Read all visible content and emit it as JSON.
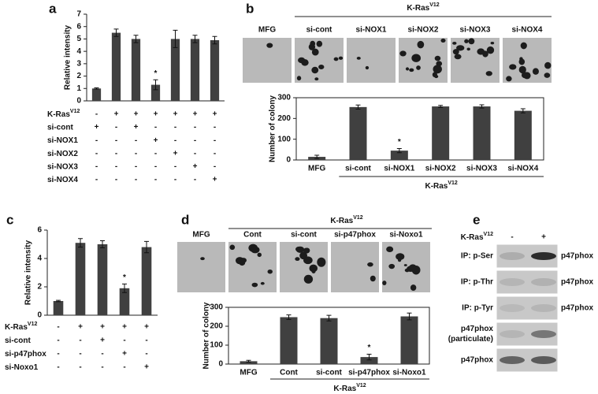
{
  "chart_data": [
    {
      "panel": "a",
      "type": "bar",
      "y_label": "Relative intensity",
      "color": "#404040",
      "values": [
        1,
        5.5,
        5.0,
        1.3,
        5.0,
        5.0,
        4.9
      ],
      "errors": [
        0.05,
        0.3,
        0.3,
        0.4,
        0.7,
        0.3,
        0.3
      ],
      "markers": [
        null,
        null,
        null,
        "*",
        null,
        null,
        null
      ],
      "ylim": [
        0,
        7
      ],
      "yticks": [
        0,
        1,
        2,
        3,
        4,
        5,
        6,
        7
      ],
      "conditions": [
        {
          "label": "K-Ras",
          "superscript": "V12",
          "marks": [
            "-",
            "+",
            "+",
            "+",
            "+",
            "+",
            "+"
          ]
        },
        {
          "label": "si-cont",
          "marks": [
            "+",
            "-",
            "+",
            "-",
            "-",
            "-",
            "-"
          ]
        },
        {
          "label": "si-NOX1",
          "marks": [
            "-",
            "-",
            "-",
            "+",
            "-",
            "-",
            "-"
          ]
        },
        {
          "label": "si-NOX2",
          "marks": [
            "-",
            "-",
            "-",
            "-",
            "+",
            "-",
            "-"
          ]
        },
        {
          "label": "si-NOX3",
          "marks": [
            "-",
            "-",
            "-",
            "-",
            "-",
            "+",
            "-"
          ]
        },
        {
          "label": "si-NOX4",
          "marks": [
            "-",
            "-",
            "-",
            "-",
            "-",
            "-",
            "+"
          ]
        }
      ]
    },
    {
      "panel": "b",
      "type": "bar",
      "y_label": "Number of colony",
      "color": "#404040",
      "header": {
        "label": "K-Ras",
        "superscript": "V12"
      },
      "image_labels": [
        "MFG",
        "si-cont",
        "si-NOX1",
        "si-NOX2",
        "si-NOX3",
        "si-NOX4"
      ],
      "categories": [
        "MFG",
        "si-cont",
        "si-NOX1",
        "si-NOX2",
        "si-NOX3",
        "si-NOX4"
      ],
      "values": [
        15,
        255,
        45,
        258,
        258,
        237
      ],
      "errors": [
        8,
        10,
        10,
        5,
        8,
        10
      ],
      "markers": [
        null,
        null,
        "*",
        null,
        null,
        null
      ],
      "ylim": [
        0,
        300
      ],
      "yticks": [
        0,
        100,
        200,
        300
      ],
      "group_label": {
        "label": "K-Ras",
        "superscript": "V12"
      }
    },
    {
      "panel": "c",
      "type": "bar",
      "y_label": "Relative intensity",
      "color": "#404040",
      "values": [
        1,
        5.1,
        5.0,
        1.9,
        4.8
      ],
      "errors": [
        0.05,
        0.3,
        0.25,
        0.3,
        0.4
      ],
      "markers": [
        null,
        null,
        null,
        "*",
        null
      ],
      "ylim": [
        0,
        6
      ],
      "yticks": [
        0,
        2,
        4,
        6
      ],
      "conditions": [
        {
          "label": "K-Ras",
          "superscript": "V12",
          "marks": [
            "-",
            "+",
            "+",
            "+",
            "+"
          ]
        },
        {
          "label": "si-cont",
          "marks": [
            "-",
            "-",
            "+",
            "-",
            "-"
          ]
        },
        {
          "label": "si-p47phox",
          "marks": [
            "-",
            "-",
            "-",
            "+",
            "-"
          ]
        },
        {
          "label": "si-Noxo1",
          "marks": [
            "-",
            "-",
            "-",
            "-",
            "+"
          ]
        }
      ]
    },
    {
      "panel": "d",
      "type": "bar",
      "y_label": "Number of colony",
      "color": "#404040",
      "header": {
        "label": "K-Ras",
        "superscript": "V12"
      },
      "image_labels": [
        "MFG",
        "Cont",
        "si-cont",
        "si-p47phox",
        "si-Noxo1"
      ],
      "categories": [
        "MFG",
        "Cont",
        "si-cont",
        "si-p47phox",
        "si-Noxo1"
      ],
      "values": [
        15,
        248,
        243,
        37,
        252
      ],
      "errors": [
        5,
        12,
        15,
        15,
        18
      ],
      "markers": [
        null,
        null,
        null,
        "*",
        null
      ],
      "ylim": [
        0,
        300
      ],
      "yticks": [
        0,
        100,
        200,
        300
      ],
      "group_label": {
        "label": "K-Ras",
        "superscript": "V12"
      }
    }
  ],
  "blot": {
    "panel": "e",
    "header": {
      "label": "K-Ras",
      "superscript": "V12"
    },
    "lanes": [
      "-",
      "+"
    ],
    "rows": [
      {
        "label": [
          "IP: p-Ser"
        ],
        "target": "p47phox"
      },
      {
        "label": [
          "IP: p-Thr"
        ],
        "target": "p47phox"
      },
      {
        "label": [
          "IP: p-Tyr"
        ],
        "target": "p47phox"
      },
      {
        "label": [
          "p47phox",
          "(particulate)"
        ]
      },
      {
        "label": [
          "p47phox"
        ]
      }
    ]
  }
}
